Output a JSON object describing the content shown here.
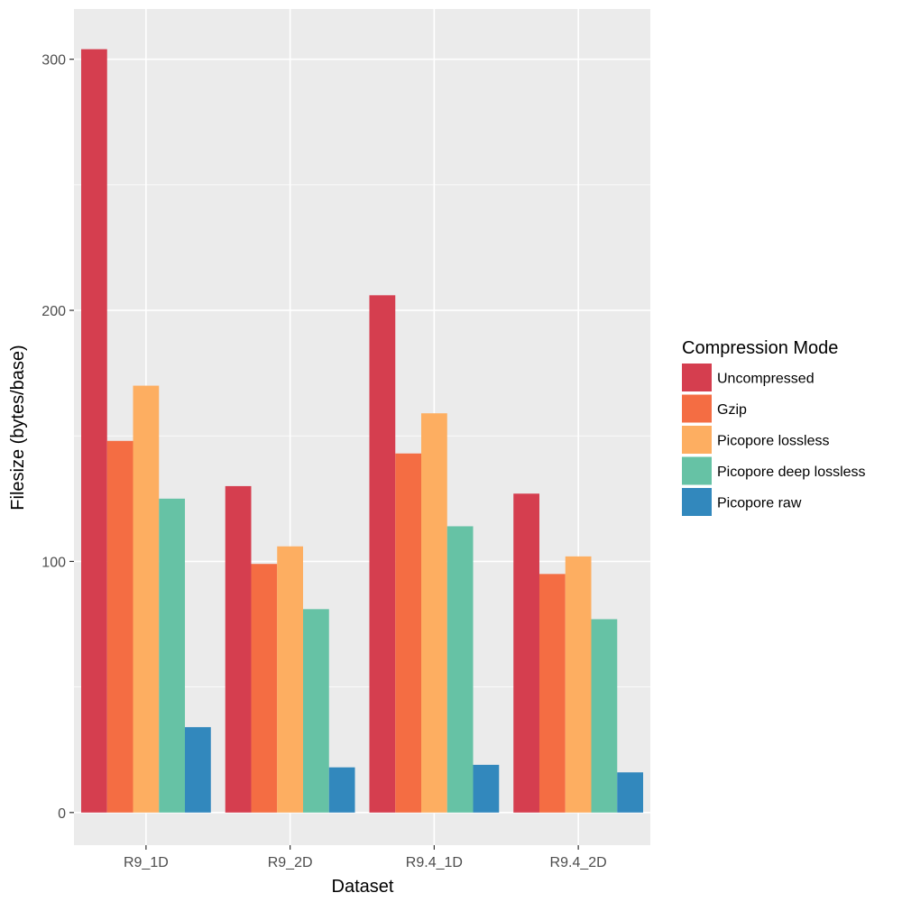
{
  "chart_data": {
    "type": "bar",
    "xlabel": "Dataset",
    "ylabel": "Filesize (bytes/base)",
    "categories": [
      "R9_1D",
      "R9_2D",
      "R9.4_1D",
      "R9.4_2D"
    ],
    "ylim": [
      -13,
      320
    ],
    "yticks": [
      0,
      100,
      200,
      300
    ],
    "grid": true,
    "legend": {
      "title": "Compression Mode",
      "position": "right"
    },
    "series": [
      {
        "name": "Uncompressed",
        "color": "#d53e4f",
        "values": [
          304,
          130,
          206,
          127
        ]
      },
      {
        "name": "Gzip",
        "color": "#f46d43",
        "values": [
          148,
          99,
          143,
          95
        ]
      },
      {
        "name": "Picopore lossless",
        "color": "#fdae61",
        "values": [
          170,
          106,
          159,
          102
        ]
      },
      {
        "name": "Picopore deep lossless",
        "color": "#66c2a5",
        "values": [
          125,
          81,
          114,
          77
        ]
      },
      {
        "name": "Picopore raw",
        "color": "#3288bd",
        "values": [
          34,
          18,
          19,
          16
        ]
      }
    ]
  }
}
